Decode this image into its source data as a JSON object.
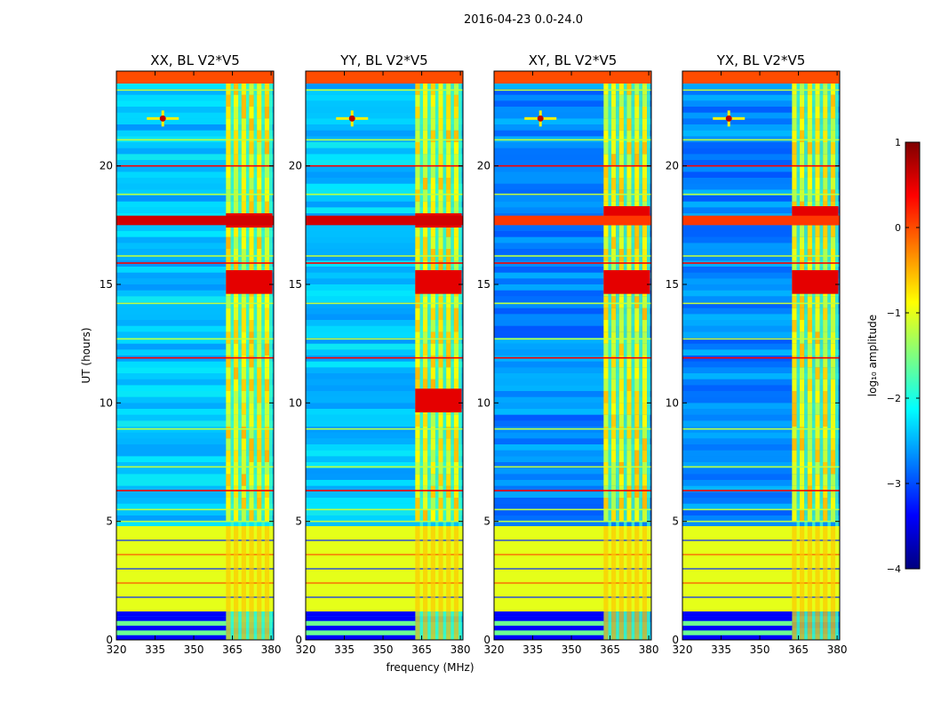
{
  "figure_title": "2016-04-23 0.0-24.0",
  "chart_data": {
    "type": "heatmap",
    "xlabel": "frequency (MHz)",
    "ylabel": "UT (hours)",
    "colorbar_label": "log₁₀ amplitude",
    "xlim": [
      320,
      381
    ],
    "ylim": [
      0,
      24
    ],
    "x_ticks": [
      320,
      335,
      350,
      365,
      380
    ],
    "x_tick_labels": [
      "320",
      "335",
      "350",
      "365",
      "380"
    ],
    "y_ticks": [
      0,
      5,
      10,
      15,
      20
    ],
    "y_tick_labels": [
      "0",
      "5",
      "10",
      "15",
      "20"
    ],
    "clim": [
      -4,
      1
    ],
    "colorbar_ticks": [
      1,
      0,
      -1,
      -2,
      -3,
      -4
    ],
    "colorbar_tick_labels": [
      "1",
      "0",
      "−1",
      "−2",
      "−3",
      "−4"
    ],
    "colormap": [
      "#00007f",
      "#0000ff",
      "#007fff",
      "#00ffff",
      "#7fff7f",
      "#ffff00",
      "#ff7f00",
      "#ff0000",
      "#7f0000"
    ],
    "panels": [
      {
        "title": "XX, BL V2*V5",
        "background_level": -2.4,
        "rfi_band_mhz": [
          362.5,
          380.5
        ],
        "strong_bands_ut": [
          [
            17.4,
            18.0
          ],
          [
            14.6,
            15.6
          ]
        ],
        "spot": {
          "freq": 338,
          "ut": 22
        }
      },
      {
        "title": "YY, BL V2*V5",
        "background_level": -2.4,
        "rfi_band_mhz": [
          362.5,
          380.5
        ],
        "strong_bands_ut": [
          [
            17.4,
            18.0
          ],
          [
            14.6,
            15.6
          ],
          [
            9.6,
            10.6
          ]
        ],
        "spot": {
          "freq": 338,
          "ut": 22
        }
      },
      {
        "title": "XY, BL V2*V5",
        "background_level": -2.7,
        "rfi_band_mhz": [
          362.5,
          380.5
        ],
        "strong_bands_ut": [
          [
            17.5,
            18.3
          ],
          [
            14.6,
            15.6
          ]
        ],
        "spot": {
          "freq": 338,
          "ut": 22
        }
      },
      {
        "title": "YX, BL V2*V5",
        "background_level": -2.7,
        "rfi_band_mhz": [
          362.5,
          380.5
        ],
        "strong_bands_ut": [
          [
            17.5,
            18.3
          ],
          [
            14.6,
            15.6
          ]
        ],
        "spot": {
          "freq": 338,
          "ut": 22
        }
      }
    ],
    "flagged_ut_range": [
      1.2,
      4.8
    ],
    "flagged_level": -1.0
  }
}
